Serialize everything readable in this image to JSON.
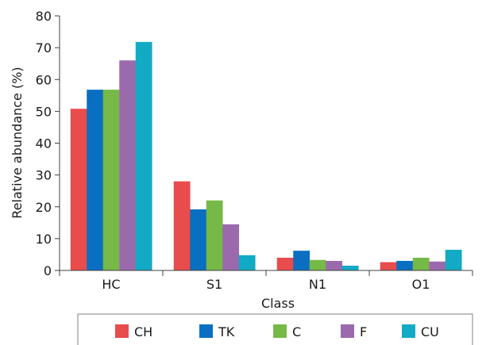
{
  "chart_data": {
    "type": "bar",
    "title": "",
    "xlabel": "Class",
    "ylabel": "Relative abundance (%)",
    "categories": [
      "HC",
      "S1",
      "N1",
      "O1"
    ],
    "ylim": [
      0,
      80
    ],
    "yticks": [
      "0",
      "10",
      "20",
      "30",
      "40",
      "50",
      "60",
      "70",
      "80"
    ],
    "grid": false,
    "legend_position": "bottom",
    "series": [
      {
        "name": "CH",
        "color": "#e84c4c",
        "values": [
          50.8,
          28.0,
          4.0,
          2.6
        ]
      },
      {
        "name": "TK",
        "color": "#0a6fc0",
        "values": [
          56.8,
          19.2,
          6.2,
          3.0
        ]
      },
      {
        "name": "C",
        "color": "#76b947",
        "values": [
          56.8,
          22.0,
          3.3,
          4.0
        ]
      },
      {
        "name": "F",
        "color": "#9b6aad",
        "values": [
          66.0,
          14.5,
          3.0,
          2.8
        ]
      },
      {
        "name": "CU",
        "color": "#12aac4",
        "values": [
          71.8,
          4.8,
          1.5,
          6.5
        ]
      }
    ]
  }
}
